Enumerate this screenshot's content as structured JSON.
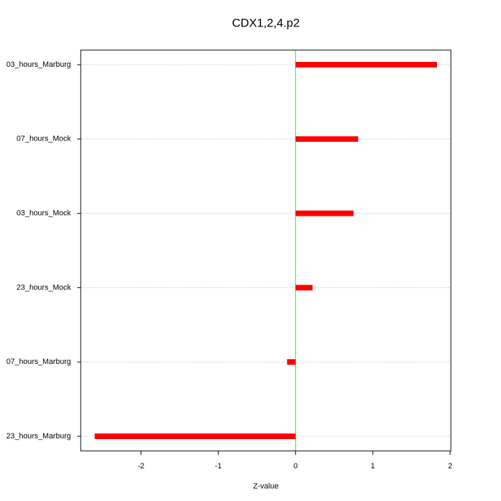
{
  "chart_data": {
    "type": "bar",
    "orientation": "horizontal",
    "title": "CDX1,2,4.p2",
    "x_label": "Z-value",
    "categories": [
      "03_hours_Marburg",
      "07_hours_Mock",
      "03_hours_Mock",
      "23_hours_Mock",
      "07_hours_Marburg",
      "23_hours_Marburg"
    ],
    "values": [
      1.83,
      0.81,
      0.75,
      0.22,
      -0.11,
      -2.6
    ],
    "color": "#ff0000",
    "zero_line_color": "#00ff00",
    "xlim": [
      -2.78,
      2.01
    ],
    "xticks": [
      -2,
      -1,
      0,
      1,
      2
    ],
    "grid": true
  }
}
